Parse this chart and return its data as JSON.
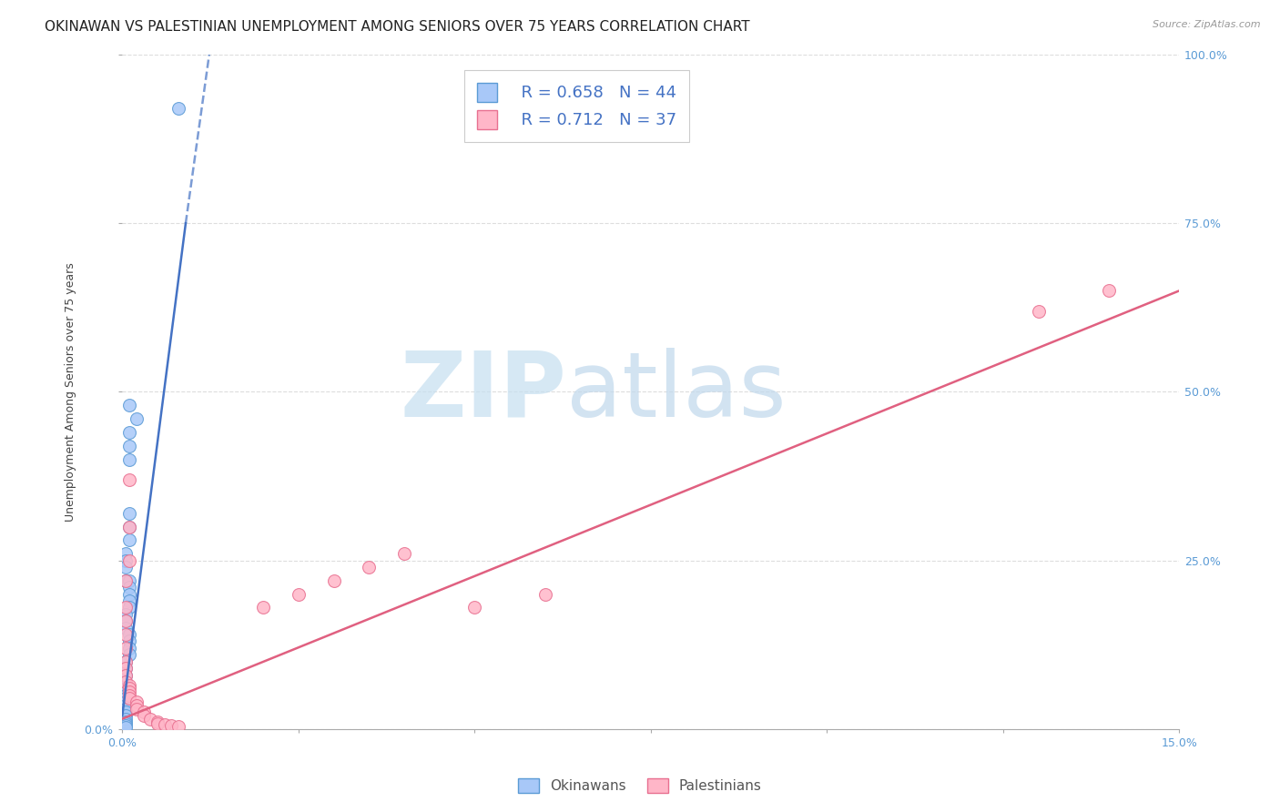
{
  "title": "OKINAWAN VS PALESTINIAN UNEMPLOYMENT AMONG SENIORS OVER 75 YEARS CORRELATION CHART",
  "source": "Source: ZipAtlas.com",
  "ylabel": "Unemployment Among Seniors over 75 years",
  "xlim": [
    0,
    0.15
  ],
  "ylim": [
    0,
    1.0
  ],
  "xticks": [
    0.0,
    0.025,
    0.05,
    0.075,
    0.1,
    0.125,
    0.15
  ],
  "xticklabels": [
    "0.0%",
    "",
    "",
    "",
    "",
    "",
    "15.0%"
  ],
  "yticks_left": [
    0.0,
    0.25,
    0.5,
    0.75,
    1.0
  ],
  "yticks_left_labels": [
    "0.0%",
    "",
    "",
    "",
    ""
  ],
  "yticks_right": [
    0.0,
    0.25,
    0.5,
    0.75,
    1.0
  ],
  "yticks_right_labels": [
    "",
    "25.0%",
    "50.0%",
    "75.0%",
    "100.0%"
  ],
  "legend_r1": "R = 0.658",
  "legend_n1": "N = 44",
  "legend_r2": "R = 0.712",
  "legend_n2": "N = 37",
  "okinawan_color": "#a8c8f8",
  "okinawan_edge": "#5b9bd5",
  "palestinian_color": "#ffb6c8",
  "palestinian_edge": "#e87090",
  "trend_okinawan": "#4472c4",
  "trend_palestinian": "#e06080",
  "okinawan_x": [
    0.008,
    0.001,
    0.002,
    0.001,
    0.001,
    0.001,
    0.001,
    0.001,
    0.001,
    0.0005,
    0.0005,
    0.0005,
    0.0005,
    0.001,
    0.001,
    0.001,
    0.001,
    0.001,
    0.0005,
    0.0005,
    0.0005,
    0.001,
    0.001,
    0.001,
    0.001,
    0.0005,
    0.0005,
    0.0005,
    0.0005,
    0.0005,
    0.0005,
    0.0005,
    0.0005,
    0.0005,
    0.0005,
    0.0005,
    0.0005,
    0.0005,
    0.0005,
    0.0005,
    0.0005,
    0.0005,
    0.0005,
    0.0005
  ],
  "okinawan_y": [
    0.92,
    0.48,
    0.46,
    0.44,
    0.42,
    0.4,
    0.32,
    0.3,
    0.28,
    0.26,
    0.25,
    0.24,
    0.22,
    0.22,
    0.21,
    0.2,
    0.19,
    0.18,
    0.17,
    0.16,
    0.15,
    0.14,
    0.13,
    0.12,
    0.11,
    0.1,
    0.09,
    0.08,
    0.07,
    0.065,
    0.06,
    0.055,
    0.05,
    0.045,
    0.04,
    0.035,
    0.03,
    0.025,
    0.02,
    0.015,
    0.01,
    0.008,
    0.005,
    0.003
  ],
  "palestinian_x": [
    0.001,
    0.001,
    0.001,
    0.0005,
    0.0005,
    0.0005,
    0.0005,
    0.0005,
    0.0005,
    0.0005,
    0.0005,
    0.0005,
    0.001,
    0.001,
    0.001,
    0.001,
    0.001,
    0.002,
    0.002,
    0.002,
    0.003,
    0.003,
    0.004,
    0.005,
    0.005,
    0.006,
    0.007,
    0.008,
    0.02,
    0.025,
    0.03,
    0.035,
    0.04,
    0.05,
    0.06,
    0.13,
    0.14
  ],
  "palestinian_y": [
    0.37,
    0.3,
    0.25,
    0.22,
    0.18,
    0.16,
    0.14,
    0.12,
    0.1,
    0.09,
    0.08,
    0.07,
    0.065,
    0.06,
    0.055,
    0.05,
    0.045,
    0.04,
    0.035,
    0.03,
    0.025,
    0.02,
    0.015,
    0.01,
    0.008,
    0.006,
    0.005,
    0.004,
    0.18,
    0.2,
    0.22,
    0.24,
    0.26,
    0.18,
    0.2,
    0.62,
    0.65
  ],
  "background_color": "#ffffff",
  "grid_color": "#dddddd",
  "title_fontsize": 11,
  "axis_label_fontsize": 9,
  "tick_fontsize": 9,
  "watermark_zip": "ZIP",
  "watermark_atlas": "atlas",
  "watermark_color_zip": "#c5dff0",
  "watermark_color_atlas": "#c0d8ec"
}
